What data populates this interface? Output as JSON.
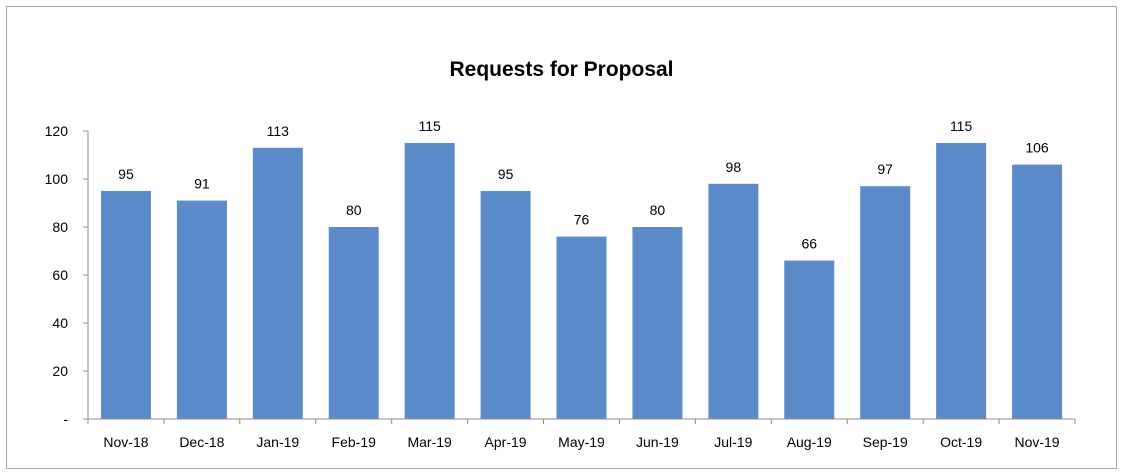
{
  "chart_data": {
    "type": "bar",
    "title": "Requests for Proposal",
    "categories": [
      "Nov-18",
      "Dec-18",
      "Jan-19",
      "Feb-19",
      "Mar-19",
      "Apr-19",
      "May-19",
      "Jun-19",
      "Jul-19",
      "Aug-19",
      "Sep-19",
      "Oct-19",
      "Nov-19"
    ],
    "values": [
      95,
      91,
      113,
      80,
      115,
      95,
      76,
      80,
      98,
      66,
      97,
      115,
      106
    ],
    "ylim": [
      0,
      120
    ],
    "yticks": [
      0,
      20,
      40,
      60,
      80,
      100,
      120
    ],
    "ytick_labels": [
      "-",
      "20",
      "40",
      "60",
      "80",
      "100",
      "120"
    ],
    "xlabel": "",
    "ylabel": "",
    "grid": false,
    "legend": "none",
    "bar_color": "#5b8cc9",
    "axis_color": "#8c8c8c"
  }
}
